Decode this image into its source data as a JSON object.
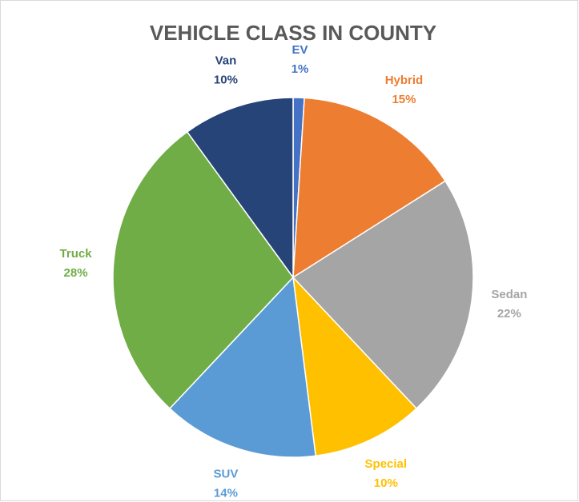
{
  "chart_data": {
    "type": "pie",
    "title": "VEHICLE CLASS IN COUNTY",
    "categories": [
      "EV",
      "Hybrid",
      "Sedan",
      "Special",
      "SUV",
      "Truck",
      "Van"
    ],
    "values": [
      1,
      15,
      22,
      10,
      14,
      28,
      10
    ],
    "value_labels": [
      "1%",
      "15%",
      "22%",
      "10%",
      "14%",
      "28%",
      "10%"
    ],
    "colors": [
      "#4472c4",
      "#ed7d31",
      "#a5a5a5",
      "#ffc000",
      "#5b9bd5",
      "#70ad47",
      "#264478"
    ]
  }
}
